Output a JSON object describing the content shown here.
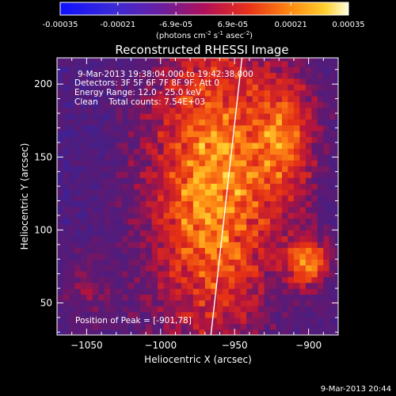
{
  "chart_data": {
    "type": "heatmap",
    "title": "Reconstructed RHESSI Image",
    "xlabel": "Heliocentric X (arcsec)",
    "ylabel": "Heliocentric Y (arcsec)",
    "xlim": [
      -1070,
      -880
    ],
    "ylim": [
      28,
      218
    ],
    "xticks": [
      -1050,
      -1000,
      -950,
      -900
    ],
    "yticks": [
      50,
      100,
      150,
      200
    ],
    "colorbar": {
      "range": [
        -0.00035,
        0.00035
      ],
      "ticks": [
        "-0.00035",
        "-0.00021",
        "-6.9e-05",
        "6.9e-05",
        "0.00021",
        "0.00035"
      ],
      "tick_values": [
        -0.00035,
        -0.00021,
        -6.9e-05,
        6.9e-05,
        0.00021,
        0.00035
      ],
      "unit_html": "(photons cm<tspan baseline-shift=\"super\" font-size=\"7\">-2</tspan> s<tspan baseline-shift=\"super\" font-size=\"7\">-1</tspan> asec<tspan baseline-shift=\"super\" font-size=\"7\">-2</tspan>)"
    },
    "annotations": [
      "9-Mar-2013 19:38:04.000 to 19:42:38.000",
      "Detectors: 3F 5F 6F 7F 8F 9F, Att 0",
      "Energy Range: 12.0 - 25.0 keV",
      "Clean    Total counts: 7.54E+03"
    ],
    "peak_label": "Position of Peak = [-901,78]",
    "peak": [
      -901,
      78
    ],
    "limb_line": [
      [
        -966,
        28
      ],
      [
        -945,
        218
      ]
    ],
    "date_stamp": "9-Mar-2013 20:44"
  }
}
